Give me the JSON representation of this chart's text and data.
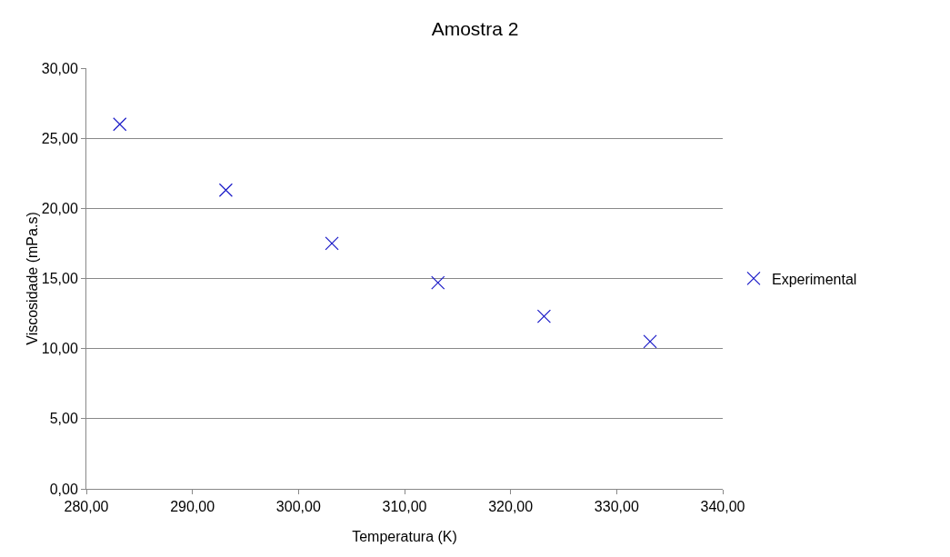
{
  "chart_data": {
    "type": "scatter",
    "title": "Amostra 2",
    "xlabel": "Temperatura (K)",
    "ylabel": "Viscosidade (mPa.s)",
    "x": [
      283.15,
      293.15,
      303.15,
      313.15,
      323.15,
      333.15
    ],
    "series": [
      {
        "name": "Experimental",
        "color": "#1c1cc8",
        "values": [
          26.0,
          21.3,
          17.5,
          14.7,
          12.3,
          10.5
        ]
      }
    ],
    "xlim": [
      280,
      340
    ],
    "xticks": [
      {
        "value": 280,
        "label": "280,00"
      },
      {
        "value": 290,
        "label": "290,00"
      },
      {
        "value": 300,
        "label": "300,00"
      },
      {
        "value": 310,
        "label": "310,00"
      },
      {
        "value": 320,
        "label": "320,00"
      },
      {
        "value": 330,
        "label": "330,00"
      },
      {
        "value": 340,
        "label": "340,00"
      }
    ],
    "ylim": [
      0,
      30
    ],
    "yticks": [
      {
        "value": 0,
        "label": "0,00"
      },
      {
        "value": 5,
        "label": "5,00"
      },
      {
        "value": 10,
        "label": "10,00"
      },
      {
        "value": 15,
        "label": "15,00"
      },
      {
        "value": 20,
        "label": "20,00"
      },
      {
        "value": 25,
        "label": "25,00"
      },
      {
        "value": 30,
        "label": "30,00"
      }
    ],
    "grid": "y",
    "legend": "right",
    "marker": "cross"
  }
}
